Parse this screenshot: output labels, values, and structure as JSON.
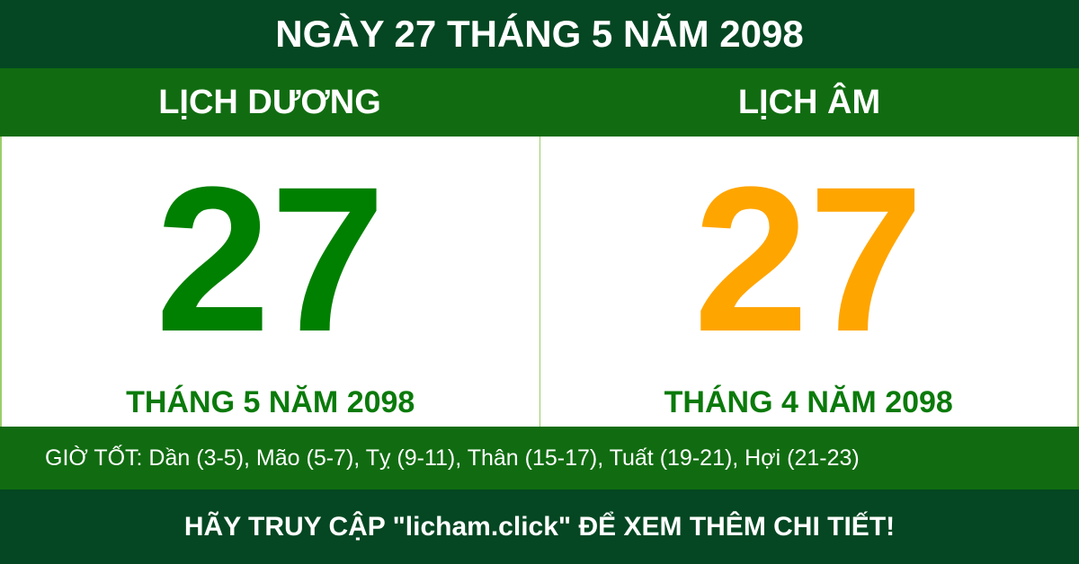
{
  "title": "NGÀY 27 THÁNG 5 NĂM 2098",
  "solar": {
    "label": "LỊCH DƯƠNG",
    "day": "27",
    "month_year": "THÁNG 5 NĂM 2098"
  },
  "lunar": {
    "label": "LỊCH ÂM",
    "day": "27",
    "month_year": "THÁNG 4 NĂM 2098"
  },
  "good_hours": "GIỜ TỐT: Dần (3-5), Mão (5-7), Tỵ (9-11), Thân (15-17), Tuất (19-21), Hợi (21-23)",
  "footer": "HÃY TRUY CẬP \"licham.click\" ĐỂ XEM THÊM CHI TIẾT!",
  "colors": {
    "dark_green": "#044722",
    "band_green": "#116c11",
    "solar_day": "#008000",
    "lunar_day": "#ffa500"
  }
}
